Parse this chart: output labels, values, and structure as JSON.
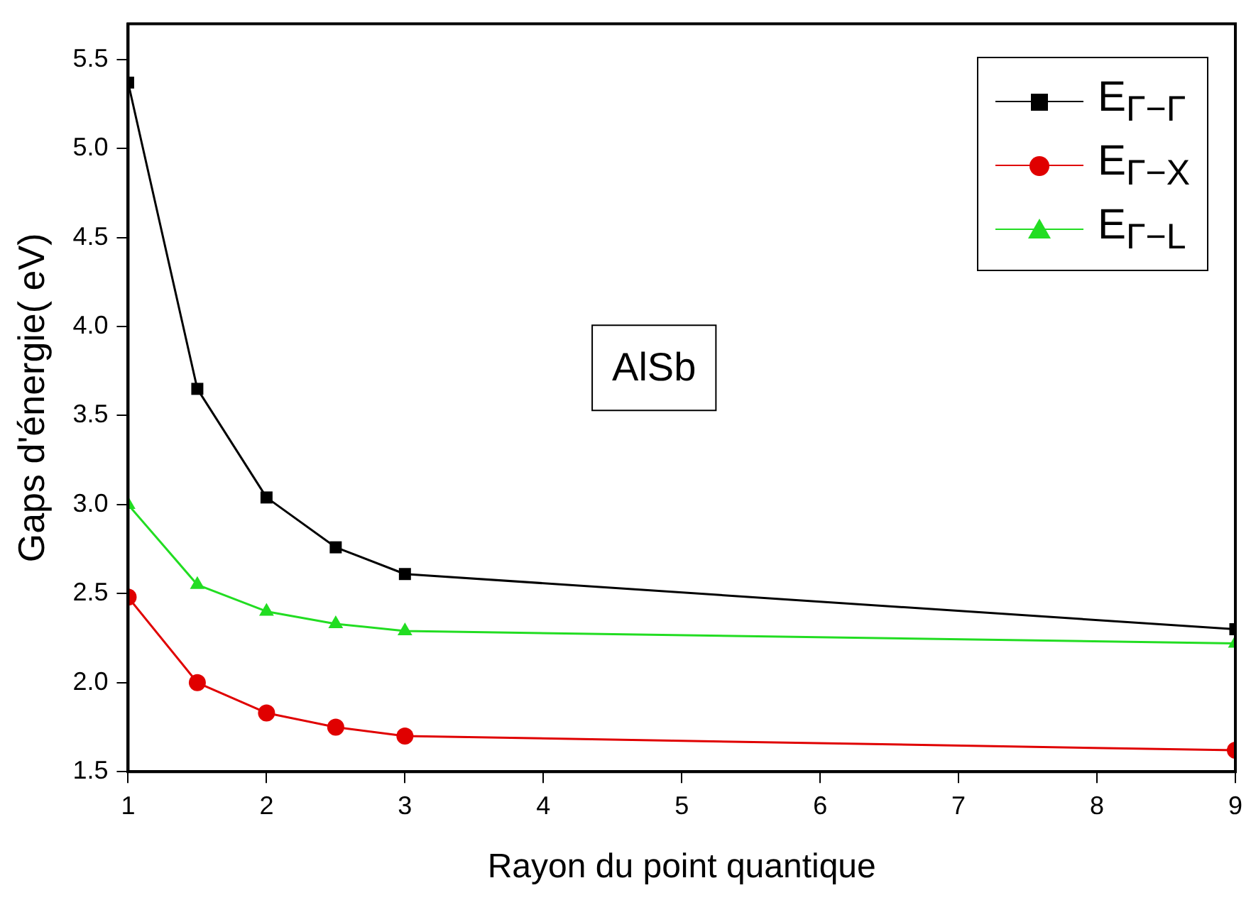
{
  "chart_data": {
    "type": "line",
    "xlabel": "Rayon du point quantique",
    "ylabel": "Gaps d'énergie( eV)",
    "x": [
      1,
      1.5,
      2,
      2.5,
      3,
      9
    ],
    "series": [
      {
        "name": "E$_{Γ−Γ}$",
        "color": "#000000",
        "marker": "square",
        "values": [
          5.37,
          3.65,
          3.04,
          2.76,
          2.61,
          2.3
        ]
      },
      {
        "name": "E$_{Γ−X}$",
        "color": "#e00000",
        "marker": "circle",
        "values": [
          2.48,
          2.0,
          1.83,
          1.75,
          1.7,
          1.62
        ]
      },
      {
        "name": "E$_{Γ−L}$",
        "color": "#22dd22",
        "marker": "triangle",
        "values": [
          3.0,
          2.55,
          2.4,
          2.33,
          2.29,
          2.22
        ]
      }
    ],
    "xlim": [
      1,
      9
    ],
    "xticks": [
      1,
      2,
      3,
      4,
      5,
      6,
      7,
      8,
      9
    ],
    "ylim": [
      1.5,
      5.7
    ],
    "yticks": [
      {
        "value": 1.5,
        "label": "1.5"
      },
      {
        "value": 2,
        "label": "2.0"
      },
      {
        "value": 2.5,
        "label": "2.5"
      },
      {
        "value": 3,
        "label": "3.0"
      },
      {
        "value": 3.5,
        "label": "3.5"
      },
      {
        "value": 4,
        "label": "4.0"
      },
      {
        "value": 4.5,
        "label": "4.5"
      },
      {
        "value": 5,
        "label": "5.0"
      },
      {
        "value": 5.5,
        "label": "5.5"
      }
    ],
    "grid": false,
    "legend": "top right",
    "annotations": [
      "AlSb"
    ]
  }
}
